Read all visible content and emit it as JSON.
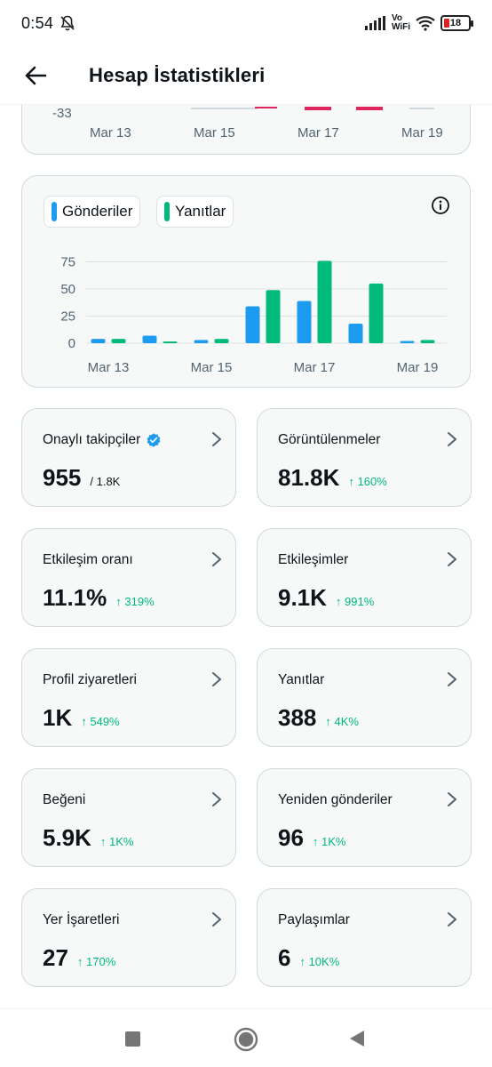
{
  "status": {
    "time": "0:54",
    "volte_top": "Vo",
    "volte_bottom": "WiFi",
    "battery": "18"
  },
  "header": {
    "title": "Hesap İstatistikleri"
  },
  "top_chart": {
    "neg_label": "-33",
    "x_labels": [
      "Mar 13",
      "Mar 15",
      "Mar 17",
      "Mar 19"
    ]
  },
  "chart_data": {
    "type": "bar",
    "categories": [
      "Mar 13",
      "Mar 14",
      "Mar 15",
      "Mar 16",
      "Mar 17",
      "Mar 18",
      "Mar 19"
    ],
    "x_tick_labels": [
      "Mar 13",
      "Mar 15",
      "Mar 17",
      "Mar 19"
    ],
    "series": [
      {
        "name": "Gönderiler",
        "color": "#1d9bf0",
        "values": [
          4,
          7,
          3,
          34,
          39,
          18,
          2
        ]
      },
      {
        "name": "Yanıtlar",
        "color": "#00ba7c",
        "values": [
          4,
          1,
          4,
          49,
          76,
          55,
          3
        ]
      }
    ],
    "y_ticks": [
      "75",
      "50",
      "25",
      "0"
    ],
    "ylim": [
      0,
      82
    ],
    "grid": true
  },
  "stats": [
    {
      "label": "Onaylı takipçiler",
      "value": "955",
      "sub": "/ 1.8K",
      "change": "",
      "verified": true
    },
    {
      "label": "Görüntülenmeler",
      "value": "81.8K",
      "sub": "",
      "change": "↑ 160%"
    },
    {
      "label": "Etkileşim oranı",
      "value": "11.1%",
      "sub": "",
      "change": "↑ 319%"
    },
    {
      "label": "Etkileşimler",
      "value": "9.1K",
      "sub": "",
      "change": "↑ 991%"
    },
    {
      "label": "Profil ziyaretleri",
      "value": "1K",
      "sub": "",
      "change": "↑ 549%"
    },
    {
      "label": "Yanıtlar",
      "value": "388",
      "sub": "",
      "change": "↑ 4K%"
    },
    {
      "label": "Beğeni",
      "value": "5.9K",
      "sub": "",
      "change": "↑ 1K%"
    },
    {
      "label": "Yeniden gönderiler",
      "value": "96",
      "sub": "",
      "change": "↑ 1K%"
    },
    {
      "label": "Yer İşaretleri",
      "value": "27",
      "sub": "",
      "change": "↑ 170%"
    },
    {
      "label": "Paylaşımlar",
      "value": "6",
      "sub": "",
      "change": "↑ 10K%"
    }
  ],
  "icons": {
    "back": "arrow-left-icon",
    "info": "info-icon",
    "chevron": "chevron-right-icon",
    "verified": "verified-badge-icon",
    "nav_recent": "square-icon",
    "nav_home": "circle-icon",
    "nav_back": "triangle-back-icon"
  }
}
